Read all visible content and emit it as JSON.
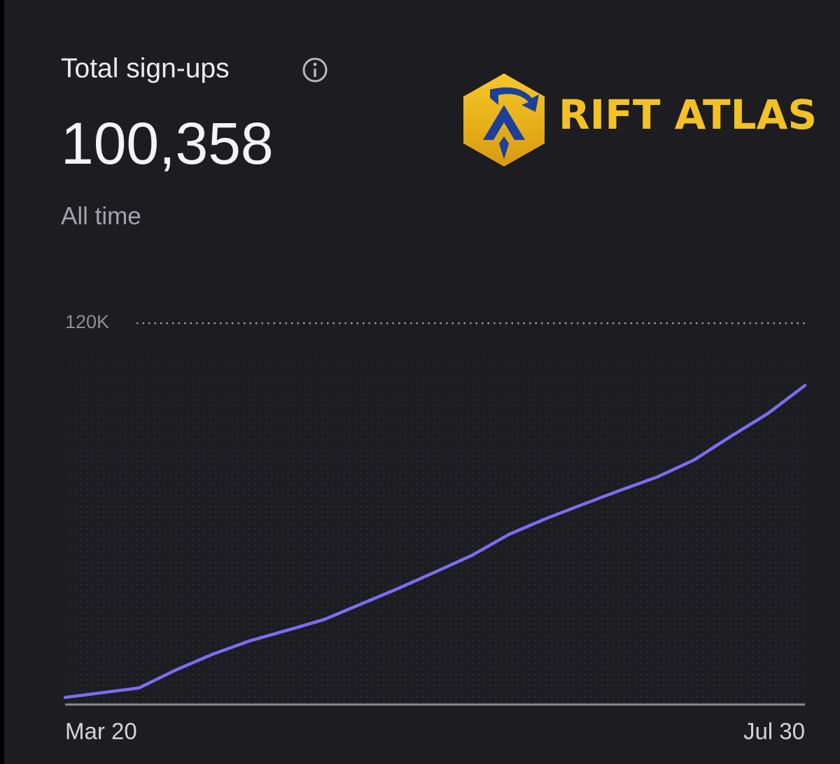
{
  "header": {
    "title": "Total sign-ups",
    "value": "100,358",
    "period": "All time"
  },
  "logo": {
    "text": "RIFT ATLAS"
  },
  "chart_data": {
    "type": "line",
    "categories": [
      "Mar 20",
      null,
      null,
      null,
      null,
      null,
      null,
      null,
      null,
      null,
      null,
      null,
      null,
      null,
      null,
      null,
      null,
      null,
      null,
      null,
      "Jul 30"
    ],
    "series": [
      {
        "name": "Total sign-ups",
        "color": "#7d6cf2",
        "values": [
          1800,
          3300,
          4800,
          10500,
          15500,
          19700,
          23000,
          26400,
          31300,
          36200,
          41400,
          46700,
          53300,
          58300,
          62800,
          67200,
          71400,
          76800,
          84300,
          91500,
          100358
        ]
      }
    ],
    "ylim": [
      0,
      120000
    ],
    "yticks": [
      {
        "value": 120000,
        "label": "120K"
      }
    ],
    "grid": true
  }
}
